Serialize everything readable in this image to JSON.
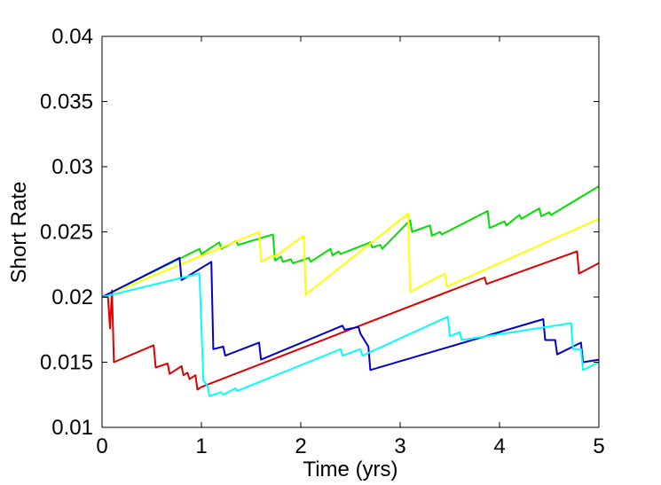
{
  "chart_data": {
    "type": "line",
    "title": "",
    "xlabel": "Time (yrs)",
    "ylabel": "Short Rate",
    "xlim": [
      0,
      5
    ],
    "ylim": [
      0.01,
      0.04
    ],
    "xticks": [
      0,
      1,
      2,
      3,
      4,
      5
    ],
    "xtick_labels": [
      "0",
      "1",
      "2",
      "3",
      "4",
      "5"
    ],
    "yticks": [
      0.01,
      0.015,
      0.02,
      0.025,
      0.03,
      0.035,
      0.04
    ],
    "ytick_labels": [
      "0.01",
      "0.015",
      "0.02",
      "0.025",
      "0.03",
      "0.035",
      "0.04"
    ],
    "grid": false,
    "legend": "none",
    "series": [
      {
        "color": "#00e000",
        "x": [
          0,
          0.98,
          1.0,
          1.18,
          1.2,
          1.35,
          1.37,
          1.72,
          1.74,
          1.8,
          1.82,
          1.9,
          1.92,
          2.08,
          2.1,
          2.3,
          2.32,
          2.38,
          2.4,
          2.7,
          2.72,
          2.8,
          2.82,
          3.1,
          3.12,
          3.3,
          3.32,
          3.4,
          3.42,
          3.88,
          3.9,
          4.05,
          4.07,
          4.2,
          4.22,
          4.4,
          4.42,
          4.5,
          4.52,
          5.0
        ],
        "y": [
          0.02,
          0.0237,
          0.0233,
          0.0242,
          0.0237,
          0.0243,
          0.024,
          0.0248,
          0.0228,
          0.0231,
          0.0227,
          0.0229,
          0.0226,
          0.023,
          0.0227,
          0.0237,
          0.0232,
          0.0235,
          0.0233,
          0.0242,
          0.0238,
          0.024,
          0.0237,
          0.0259,
          0.025,
          0.0255,
          0.0247,
          0.025,
          0.0248,
          0.0266,
          0.0253,
          0.0258,
          0.0255,
          0.0263,
          0.026,
          0.0268,
          0.0262,
          0.0265,
          0.0263,
          0.0285
        ]
      },
      {
        "color": "#ffff00",
        "x": [
          0,
          1.58,
          1.6,
          1.72,
          1.74,
          2.03,
          2.05,
          3.08,
          3.1,
          3.45,
          3.47,
          5.0
        ],
        "y": [
          0.02,
          0.025,
          0.0227,
          0.0232,
          0.0231,
          0.0247,
          0.0202,
          0.0264,
          0.0204,
          0.0218,
          0.0208,
          0.026
        ]
      },
      {
        "color": "#dd0000",
        "x": [
          0,
          0.06,
          0.08,
          0.1,
          0.12,
          0.52,
          0.54,
          0.66,
          0.68,
          0.8,
          0.82,
          0.86,
          0.88,
          0.94,
          0.96,
          1.0,
          3.85,
          3.87,
          4.78,
          4.8,
          5.0
        ],
        "y": [
          0.02,
          0.02,
          0.0176,
          0.0205,
          0.015,
          0.0163,
          0.0146,
          0.0149,
          0.0141,
          0.0147,
          0.014,
          0.0142,
          0.0137,
          0.014,
          0.0129,
          0.0131,
          0.0215,
          0.021,
          0.0235,
          0.0218,
          0.0226
        ]
      },
      {
        "color": "#0000cc",
        "x": [
          0,
          0.78,
          0.8,
          1.1,
          1.12,
          1.22,
          1.24,
          1.58,
          1.6,
          2.42,
          2.44,
          2.58,
          2.6,
          2.68,
          2.7,
          4.44,
          4.46,
          4.56,
          4.58,
          4.82,
          4.84,
          5.0
        ],
        "y": [
          0.02,
          0.023,
          0.0213,
          0.0227,
          0.016,
          0.0162,
          0.0155,
          0.0165,
          0.0152,
          0.0178,
          0.0175,
          0.0177,
          0.0172,
          0.0162,
          0.0144,
          0.0183,
          0.0167,
          0.0167,
          0.0156,
          0.0165,
          0.015,
          0.0152
        ]
      },
      {
        "color": "#00ffff",
        "x": [
          0,
          0.98,
          1.02,
          1.06,
          1.08,
          1.2,
          1.22,
          1.34,
          1.36,
          2.4,
          2.42,
          2.6,
          2.62,
          3.48,
          3.5,
          3.6,
          3.62,
          4.72,
          4.74,
          4.82,
          4.84,
          5.0
        ],
        "y": [
          0.02,
          0.0218,
          0.0136,
          0.0132,
          0.0124,
          0.0127,
          0.0125,
          0.013,
          0.0128,
          0.016,
          0.0155,
          0.016,
          0.0155,
          0.0185,
          0.017,
          0.0173,
          0.0167,
          0.018,
          0.016,
          0.016,
          0.0144,
          0.015
        ]
      }
    ]
  }
}
